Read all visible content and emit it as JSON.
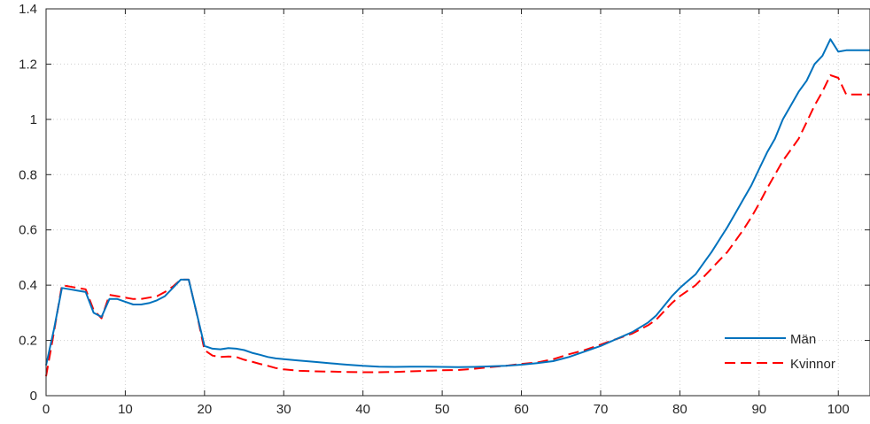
{
  "chart_data": {
    "type": "line",
    "title": "",
    "xlabel": "",
    "ylabel": "",
    "xlim": [
      0,
      104
    ],
    "ylim": [
      0,
      1.4
    ],
    "grid": true,
    "legend_position": "bottom-right",
    "x_ticks": [
      "0",
      "10",
      "20",
      "30",
      "40",
      "50",
      "60",
      "70",
      "80",
      "90",
      "100"
    ],
    "y_ticks": [
      "0",
      "0.2",
      "0.4",
      "0.6",
      "0.8",
      "1",
      "1.2",
      "1.4"
    ],
    "series": [
      {
        "name": "Män",
        "color": "#0072bd",
        "style": "solid",
        "x": [
          0,
          1,
          2,
          3,
          4,
          5,
          6,
          7,
          8,
          9,
          10,
          11,
          12,
          13,
          14,
          15,
          16,
          17,
          18,
          19,
          20,
          21,
          22,
          23,
          24,
          25,
          26,
          27,
          28,
          29,
          30,
          32,
          34,
          36,
          38,
          40,
          42,
          44,
          46,
          48,
          50,
          52,
          54,
          56,
          58,
          60,
          62,
          64,
          66,
          68,
          70,
          72,
          74,
          76,
          77,
          78,
          79,
          80,
          81,
          82,
          83,
          84,
          85,
          86,
          87,
          88,
          89,
          90,
          91,
          92,
          93,
          94,
          95,
          96,
          97,
          98,
          99,
          100,
          101,
          104
        ],
        "values": [
          0.11,
          0.24,
          0.39,
          0.385,
          0.38,
          0.375,
          0.3,
          0.285,
          0.35,
          0.35,
          0.34,
          0.33,
          0.33,
          0.335,
          0.345,
          0.36,
          0.39,
          0.42,
          0.42,
          0.3,
          0.18,
          0.17,
          0.168,
          0.172,
          0.17,
          0.165,
          0.155,
          0.148,
          0.14,
          0.135,
          0.132,
          0.127,
          0.122,
          0.117,
          0.112,
          0.108,
          0.105,
          0.104,
          0.105,
          0.105,
          0.104,
          0.103,
          0.104,
          0.106,
          0.108,
          0.112,
          0.118,
          0.125,
          0.14,
          0.16,
          0.18,
          0.205,
          0.23,
          0.265,
          0.29,
          0.325,
          0.36,
          0.39,
          0.415,
          0.44,
          0.48,
          0.52,
          0.565,
          0.61,
          0.66,
          0.71,
          0.76,
          0.82,
          0.88,
          0.93,
          1.0,
          1.05,
          1.1,
          1.14,
          1.2,
          1.23,
          1.29,
          1.245,
          1.25,
          1.25
        ]
      },
      {
        "name": "Kvinnor",
        "color": "#ff0000",
        "style": "dashed",
        "x": [
          0,
          1,
          2,
          3,
          4,
          5,
          6,
          7,
          8,
          9,
          10,
          11,
          12,
          13,
          14,
          15,
          16,
          17,
          18,
          19,
          20,
          21,
          22,
          23,
          24,
          25,
          26,
          27,
          28,
          29,
          30,
          32,
          34,
          36,
          38,
          40,
          42,
          44,
          46,
          48,
          50,
          52,
          54,
          56,
          58,
          60,
          62,
          64,
          66,
          68,
          70,
          72,
          74,
          76,
          77,
          78,
          79,
          80,
          81,
          82,
          83,
          84,
          85,
          86,
          87,
          88,
          89,
          90,
          91,
          92,
          93,
          94,
          95,
          96,
          97,
          98,
          99,
          100,
          101,
          104
        ],
        "values": [
          0.07,
          0.23,
          0.4,
          0.395,
          0.39,
          0.385,
          0.31,
          0.28,
          0.365,
          0.36,
          0.355,
          0.35,
          0.35,
          0.355,
          0.36,
          0.375,
          0.395,
          0.42,
          0.42,
          0.3,
          0.165,
          0.145,
          0.14,
          0.142,
          0.14,
          0.13,
          0.123,
          0.115,
          0.108,
          0.1,
          0.095,
          0.09,
          0.088,
          0.087,
          0.086,
          0.085,
          0.085,
          0.086,
          0.088,
          0.09,
          0.092,
          0.093,
          0.097,
          0.103,
          0.108,
          0.115,
          0.12,
          0.132,
          0.15,
          0.165,
          0.185,
          0.205,
          0.225,
          0.255,
          0.275,
          0.305,
          0.335,
          0.36,
          0.38,
          0.4,
          0.43,
          0.46,
          0.49,
          0.52,
          0.56,
          0.6,
          0.645,
          0.695,
          0.75,
          0.8,
          0.85,
          0.89,
          0.93,
          0.99,
          1.05,
          1.1,
          1.16,
          1.15,
          1.09,
          1.09
        ]
      }
    ]
  }
}
